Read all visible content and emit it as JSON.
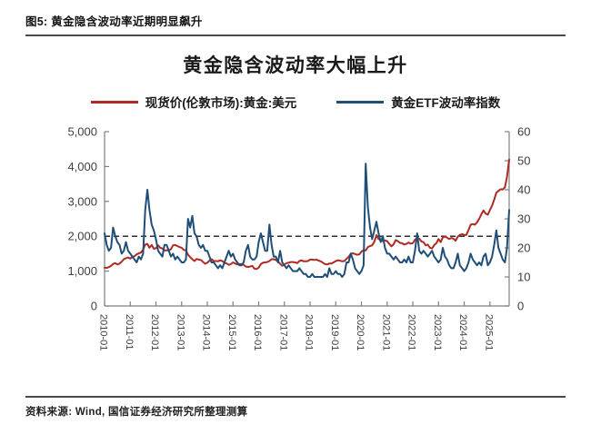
{
  "figure": {
    "caption": "图5: 黄金隐含波动率近期明显飙升",
    "source": "资料来源: Wind, 国信证券经济研究所整理测算"
  },
  "colors": {
    "gold_price_line": "#b02a23",
    "volatility_line": "#1f4e79",
    "axis_line": "#7f7f7f",
    "axis_text": "#3f3f3f",
    "reference_line": "#1a1a1a"
  },
  "chart_data": {
    "type": "line",
    "title": "黄金隐含波动率大幅上升",
    "xlabel": "",
    "ylabel_left": "",
    "ylabel_right": "",
    "grid": false,
    "legend_position": "top",
    "x_start": "2010-01",
    "x_end": "2025-10",
    "frequency": "monthly",
    "x_tick_labels": [
      "2010-01",
      "2011-01",
      "2012-01",
      "2013-01",
      "2014-01",
      "2015-01",
      "2016-01",
      "2017-01",
      "2018-01",
      "2019-01",
      "2020-01",
      "2021-01",
      "2022-01",
      "2023-01",
      "2024-01",
      "2025-01"
    ],
    "x_ticks_every_n_points": 12,
    "left_axis": {
      "min": 0,
      "max": 5000,
      "tick_labels": [
        "5,000",
        "4,000",
        "3,000",
        "2,000",
        "1,000",
        "0"
      ]
    },
    "right_axis": {
      "min": 0,
      "max": 60,
      "tick_labels": [
        "60",
        "50",
        "40",
        "30",
        "20",
        "10",
        "0"
      ]
    },
    "reference_line": {
      "axis": "left",
      "value": 2000,
      "style": "dashed"
    },
    "series": [
      {
        "name": "现货价(伦敦市场):黄金:美元",
        "key": "gold-price-line",
        "axis": "left",
        "color": "#b02a23",
        "values": [
          1100,
          1095,
          1115,
          1150,
          1205,
          1230,
          1190,
          1215,
          1270,
          1340,
          1370,
          1390,
          1360,
          1410,
          1430,
          1480,
          1510,
          1530,
          1620,
          1760,
          1780,
          1670,
          1750,
          1640,
          1660,
          1740,
          1670,
          1650,
          1590,
          1600,
          1590,
          1630,
          1740,
          1750,
          1720,
          1690,
          1670,
          1610,
          1590,
          1470,
          1400,
          1340,
          1290,
          1350,
          1330,
          1320,
          1260,
          1210,
          1240,
          1300,
          1340,
          1290,
          1290,
          1280,
          1310,
          1290,
          1240,
          1220,
          1180,
          1200,
          1250,
          1220,
          1190,
          1200,
          1200,
          1180,
          1130,
          1120,
          1130,
          1150,
          1070,
          1060,
          1100,
          1200,
          1240,
          1250,
          1260,
          1290,
          1340,
          1340,
          1320,
          1280,
          1210,
          1150,
          1190,
          1230,
          1240,
          1260,
          1260,
          1250,
          1230,
          1290,
          1310,
          1280,
          1280,
          1290,
          1330,
          1330,
          1320,
          1330,
          1300,
          1280,
          1240,
          1200,
          1190,
          1220,
          1220,
          1250,
          1290,
          1310,
          1300,
          1280,
          1290,
          1350,
          1410,
          1500,
          1510,
          1490,
          1470,
          1480,
          1560,
          1600,
          1590,
          1690,
          1720,
          1740,
          1840,
          2030,
          1920,
          1900,
          1860,
          1880,
          1860,
          1780,
          1710,
          1770,
          1890,
          1860,
          1810,
          1800,
          1760,
          1780,
          1820,
          1790,
          1800,
          1900,
          1950,
          1930,
          1850,
          1830,
          1740,
          1760,
          1670,
          1650,
          1750,
          1800,
          1920,
          1830,
          1970,
          1990,
          1960,
          1920,
          1950,
          1930,
          1870,
          1990,
          2040,
          2060,
          2040,
          2040,
          2180,
          2330,
          2350,
          2330,
          2400,
          2500,
          2630,
          2740,
          2650,
          2620,
          2750,
          2880,
          3050,
          3250,
          3300,
          3350,
          3340,
          3400,
          3700,
          4200
        ]
      },
      {
        "name": "黄金ETF波动率指数",
        "key": "volatility-line",
        "axis": "right",
        "color": "#1f4e79",
        "values": [
          25,
          21,
          19,
          20,
          27,
          24,
          22,
          21,
          18,
          19,
          22,
          19,
          18,
          17,
          16,
          15,
          17,
          16,
          18,
          33,
          40,
          33,
          28,
          26,
          23,
          19,
          18,
          17,
          21,
          21,
          19,
          17,
          18,
          16,
          17,
          16,
          15,
          15,
          16,
          30,
          27,
          31,
          25,
          24,
          21,
          20,
          21,
          19,
          19,
          17,
          15,
          15,
          14,
          13,
          14,
          13,
          15,
          17,
          19,
          17,
          18,
          16,
          15,
          14,
          14,
          15,
          19,
          21,
          17,
          16,
          16,
          17,
          22,
          25,
          22,
          19,
          19,
          28,
          21,
          17,
          17,
          15,
          19,
          15,
          14,
          13,
          14,
          13,
          12,
          12,
          12,
          13,
          12,
          11,
          11,
          10,
          10,
          11,
          10,
          10,
          10,
          10,
          10,
          11,
          10,
          13,
          11,
          11,
          12,
          11,
          11,
          10,
          11,
          15,
          15,
          18,
          16,
          13,
          12,
          11,
          12,
          14,
          49,
          34,
          27,
          23,
          26,
          29,
          25,
          22,
          24,
          20,
          18,
          18,
          17,
          16,
          17,
          16,
          15,
          15,
          16,
          15,
          17,
          15,
          15,
          19,
          25,
          19,
          18,
          19,
          18,
          17,
          18,
          19,
          17,
          16,
          15,
          16,
          20,
          17,
          16,
          14,
          13,
          13,
          15,
          18,
          14,
          13,
          12,
          13,
          15,
          18,
          16,
          15,
          14,
          15,
          14,
          17,
          18,
          14,
          15,
          17,
          21,
          26,
          20,
          18,
          16,
          15,
          20,
          33
        ]
      }
    ]
  }
}
